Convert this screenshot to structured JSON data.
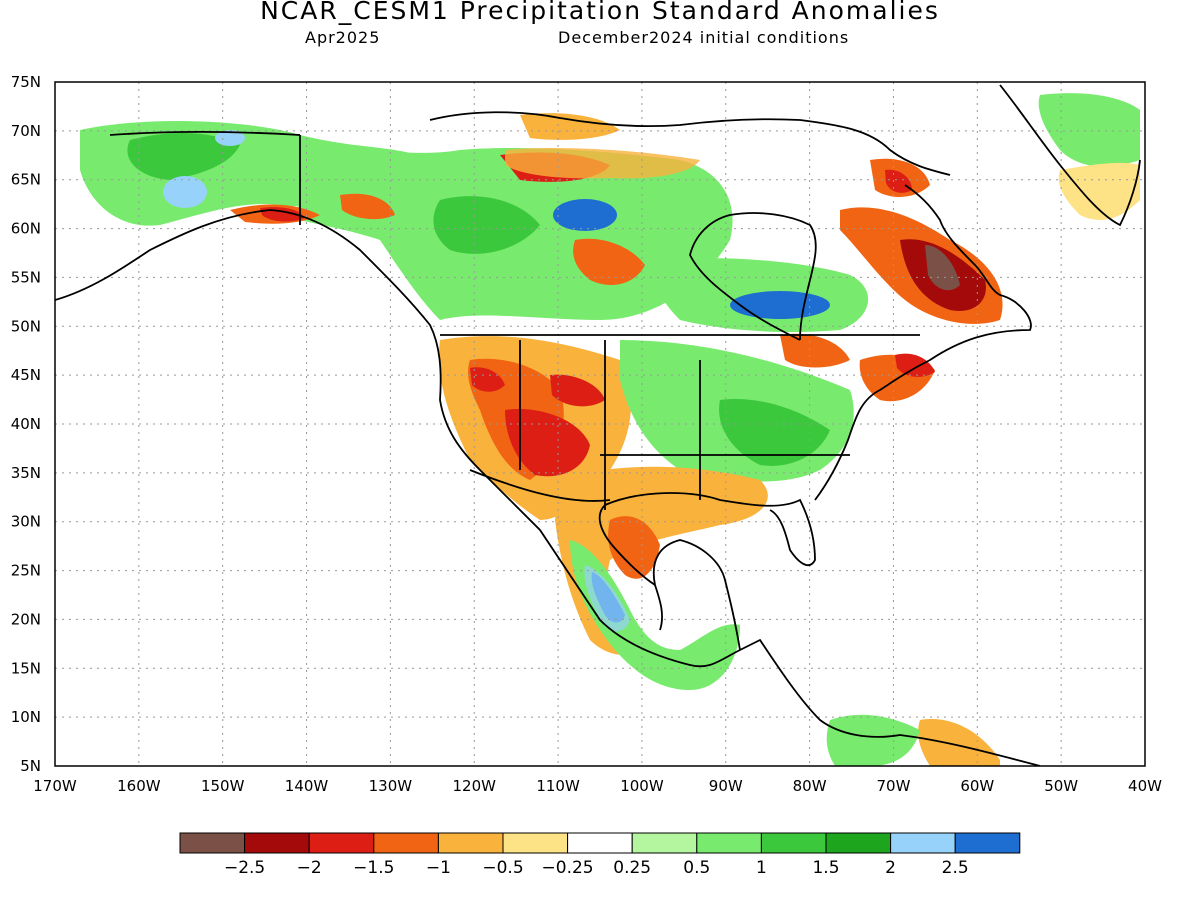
{
  "header": {
    "title": "NCAR_CESM1 Precipitation Standard Anomalies",
    "period": "Apr2025",
    "init": "December2024 initial conditions"
  },
  "map": {
    "lon_range": [
      -170,
      -40
    ],
    "lat_range": [
      5,
      75
    ],
    "lon_ticks": [
      "170W",
      "160W",
      "150W",
      "140W",
      "130W",
      "120W",
      "110W",
      "100W",
      "90W",
      "80W",
      "70W",
      "60W",
      "50W",
      "40W"
    ],
    "lat_ticks": [
      "5N",
      "10N",
      "15N",
      "20N",
      "25N",
      "30N",
      "35N",
      "40N",
      "45N",
      "50N",
      "55N",
      "60N",
      "65N",
      "70N",
      "75N"
    ],
    "grid": "dotted"
  },
  "colorbar": {
    "colors": [
      "#7b5046",
      "#a50a0a",
      "#dc1e14",
      "#f06414",
      "#f9b23c",
      "#fde286",
      "#ffffff",
      "#b4f5a0",
      "#78eb6e",
      "#3cc83c",
      "#1ea51e",
      "#96d2fa",
      "#1e6ed2"
    ],
    "labels": [
      "-2.5",
      "-2",
      "-1.5",
      "-1",
      "-0.5",
      "-0.25",
      "0.25",
      "0.5",
      "1",
      "1.5",
      "2",
      "2.5"
    ]
  }
}
